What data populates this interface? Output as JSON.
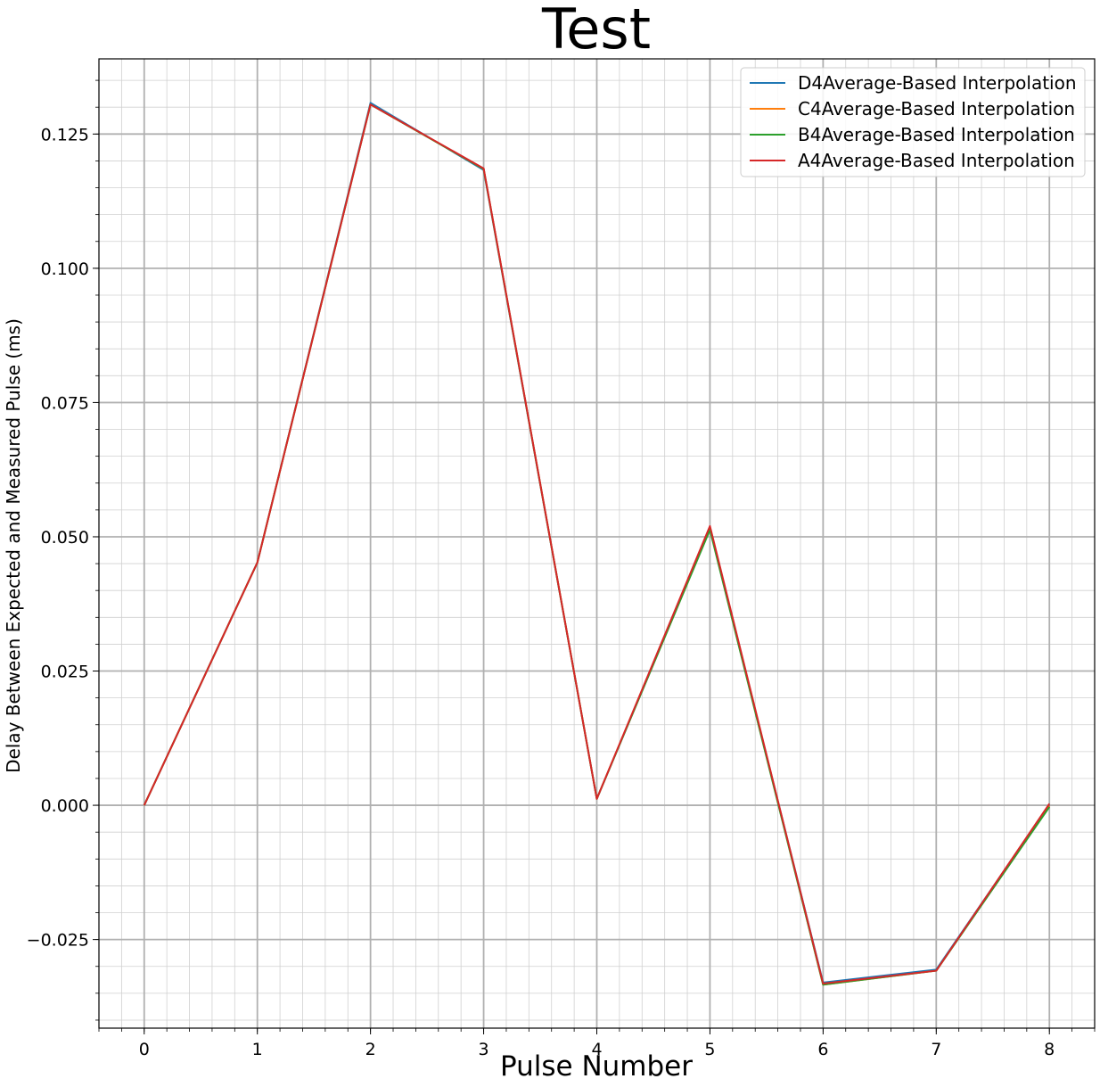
{
  "chart_data": {
    "type": "line",
    "title": "Test",
    "xlabel": "Pulse Number",
    "ylabel": "Delay Between Expected and Measured Pulse (ms)",
    "x": [
      0,
      1,
      2,
      3,
      4,
      5,
      6,
      7,
      8
    ],
    "xlim": [
      -0.4,
      8.4
    ],
    "ylim": [
      -0.0415,
      0.139
    ],
    "xticks": [
      0,
      1,
      2,
      3,
      4,
      5,
      6,
      7,
      8
    ],
    "xtick_labels": [
      "0",
      "1",
      "2",
      "3",
      "4",
      "5",
      "6",
      "7",
      "8"
    ],
    "yticks": [
      -0.025,
      0.0,
      0.025,
      0.05,
      0.075,
      0.1,
      0.125
    ],
    "ytick_labels": [
      "−0.025",
      "0.000",
      "0.025",
      "0.050",
      "0.075",
      "0.100",
      "0.125"
    ],
    "grid": true,
    "minor_grid": true,
    "legend_position": "top-right",
    "series": [
      {
        "name": "D4Average-Based Interpolation",
        "color": "#1f77b4",
        "values": [
          0.0,
          0.0452,
          0.1308,
          0.1183,
          0.0012,
          0.0515,
          -0.033,
          -0.0306,
          0.0001
        ]
      },
      {
        "name": "C4Average-Based Interpolation",
        "color": "#ff7f0e",
        "values": [
          0.0,
          0.0452,
          0.1305,
          0.1185,
          0.0012,
          0.0518,
          -0.0334,
          -0.0308,
          -0.0001
        ]
      },
      {
        "name": "B4Average-Based Interpolation",
        "color": "#2ca02c",
        "values": [
          0.0,
          0.0452,
          0.1305,
          0.1185,
          0.0012,
          0.0513,
          -0.0334,
          -0.0308,
          -0.0003
        ]
      },
      {
        "name": "A4Average-Based Interpolation",
        "color": "#d62728",
        "values": [
          0.0,
          0.0452,
          0.1305,
          0.1186,
          0.0012,
          0.052,
          -0.0332,
          -0.0308,
          0.0003
        ]
      }
    ]
  }
}
